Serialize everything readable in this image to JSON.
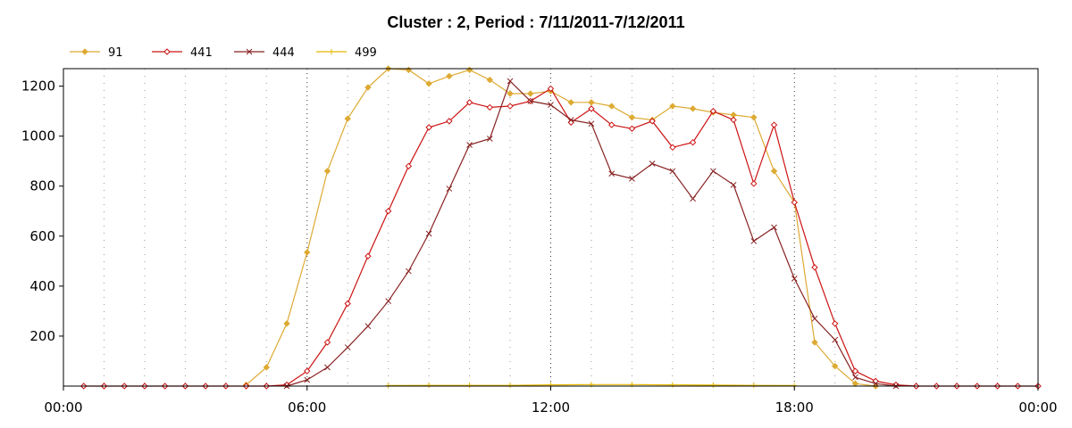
{
  "chart_data": {
    "type": "line",
    "title": "Cluster : 2, Period : 7/11/2011-7/12/2011",
    "xlabel": "",
    "ylabel": "",
    "xlim": [
      0,
      24
    ],
    "ylim": [
      0,
      1270
    ],
    "yticks": [
      200,
      400,
      600,
      800,
      1000,
      1200
    ],
    "xticks": [
      {
        "value": 0,
        "label": "00:00"
      },
      {
        "value": 6,
        "label": "06:00"
      },
      {
        "value": 12,
        "label": "12:00"
      },
      {
        "value": 18,
        "label": "18:00"
      },
      {
        "value": 24,
        "label": "00:00"
      }
    ],
    "grid": true,
    "legend_position": "top-left",
    "series": [
      {
        "name": "91",
        "color": "#DDAA33",
        "marker": "diamond",
        "x": [
          4.5,
          5.0,
          5.5,
          6.0,
          6.5,
          7.0,
          7.5,
          8.0,
          8.5,
          9.0,
          9.5,
          10.0,
          10.5,
          11.0,
          11.5,
          12.0,
          12.5,
          13.0,
          13.5,
          14.0,
          14.5,
          15.0,
          15.5,
          16.0,
          16.5,
          17.0,
          17.5,
          18.0,
          18.5,
          19.0,
          19.5,
          20.0
        ],
        "y": [
          5,
          75,
          250,
          535,
          860,
          1070,
          1195,
          1270,
          1265,
          1210,
          1240,
          1265,
          1225,
          1170,
          1170,
          1180,
          1135,
          1135,
          1120,
          1075,
          1065,
          1120,
          1110,
          1095,
          1085,
          1075,
          860,
          735,
          175,
          80,
          10,
          0
        ]
      },
      {
        "name": "441",
        "color": "#CC1111",
        "marker": "open-diamond",
        "x": [
          0.5,
          1.0,
          1.5,
          2.0,
          2.5,
          3.0,
          3.5,
          4.0,
          4.5,
          5.0,
          5.5,
          6.0,
          6.5,
          7.0,
          7.5,
          8.0,
          8.5,
          9.0,
          9.5,
          10.0,
          10.5,
          11.0,
          11.5,
          12.0,
          12.5,
          13.0,
          13.5,
          14.0,
          14.5,
          15.0,
          15.5,
          16.0,
          16.5,
          17.0,
          17.5,
          18.0,
          18.5,
          19.0,
          19.5,
          20.0,
          20.5,
          21.0,
          21.5,
          22.0,
          22.5,
          23.0,
          23.5,
          24.0
        ],
        "y": [
          0,
          0,
          0,
          0,
          0,
          0,
          0,
          0,
          0,
          0,
          5,
          60,
          175,
          330,
          520,
          700,
          880,
          1035,
          1060,
          1135,
          1115,
          1120,
          1140,
          1190,
          1055,
          1110,
          1045,
          1030,
          1060,
          955,
          975,
          1100,
          1065,
          810,
          1045,
          735,
          475,
          250,
          60,
          20,
          5,
          0,
          0,
          0,
          0,
          0,
          0,
          0
        ]
      },
      {
        "name": "444",
        "color": "#882222",
        "marker": "x",
        "x": [
          5.5,
          6.0,
          6.5,
          7.0,
          7.5,
          8.0,
          8.5,
          9.0,
          9.5,
          10.0,
          10.5,
          11.0,
          11.5,
          12.0,
          12.5,
          13.0,
          13.5,
          14.0,
          14.5,
          15.0,
          15.5,
          16.0,
          16.5,
          17.0,
          17.5,
          18.0,
          18.5,
          19.0,
          19.5,
          20.0,
          20.5
        ],
        "y": [
          0,
          25,
          75,
          155,
          240,
          340,
          460,
          610,
          790,
          965,
          990,
          1220,
          1140,
          1125,
          1065,
          1050,
          850,
          830,
          890,
          860,
          750,
          860,
          805,
          580,
          635,
          430,
          270,
          185,
          35,
          10,
          0
        ]
      },
      {
        "name": "499",
        "color": "#E6B800",
        "marker": "plus",
        "x": [
          8.0,
          9.0,
          10.0,
          11.0,
          12.0,
          13.0,
          14.0,
          15.0,
          16.0,
          17.0,
          18.0
        ],
        "y": [
          2,
          3,
          3,
          3,
          5,
          6,
          6,
          5,
          4,
          3,
          2
        ]
      }
    ]
  }
}
